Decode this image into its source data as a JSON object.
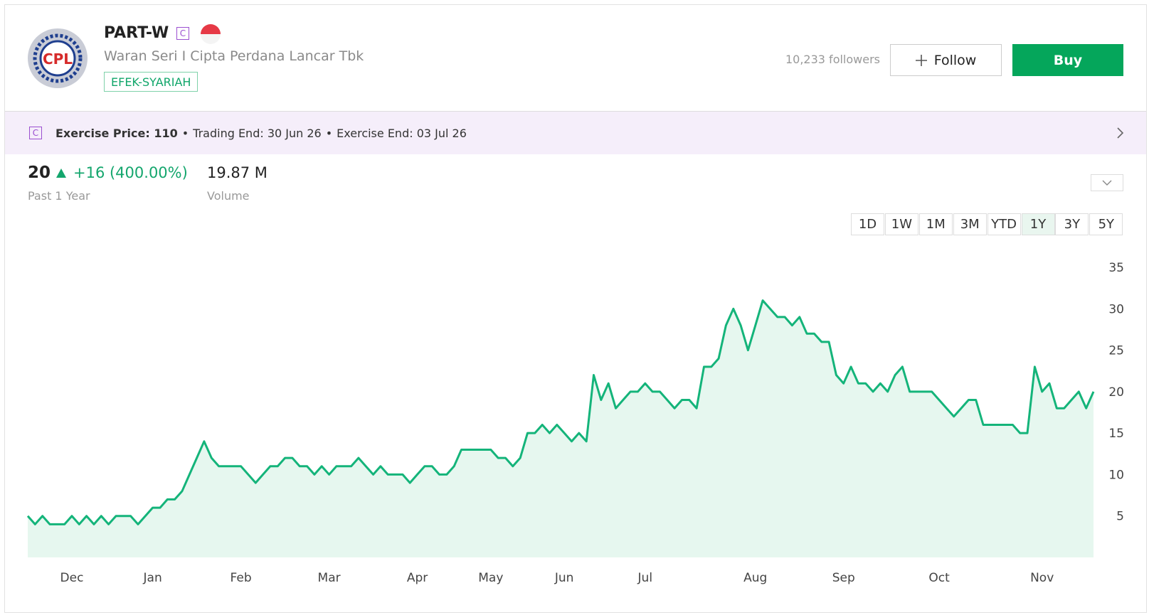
{
  "header": {
    "logo_text": "CPL",
    "ticker": "PART-W",
    "badge": "C",
    "name": "Waran Seri I Cipta Perdana Lancar Tbk",
    "tag": "EFEK-SYARIAH",
    "followers": "10,233 followers",
    "follow": "Follow",
    "buy": "Buy"
  },
  "banner": {
    "badge": "C",
    "exercise_price": "Exercise Price: 110",
    "separator": "•",
    "trading_end": "Trading End: 30 Jun 26",
    "exercise_end": "Exercise End: 03 Jul 26"
  },
  "stats": {
    "price": "20",
    "change": "+16 (400.00%)",
    "period": "Past 1 Year",
    "volume": "19.87 M",
    "volume_label": "Volume"
  },
  "ranges": {
    "labels": [
      "1D",
      "1W",
      "1M",
      "3M",
      "YTD",
      "1Y",
      "3Y",
      "5Y"
    ],
    "selected": 5
  },
  "chart_data": {
    "type": "line",
    "color": "#14b47a",
    "fill": "#e6f7ef",
    "categories": [
      null,
      null,
      null,
      null,
      null,
      null,
      "Dec",
      null,
      null,
      null,
      null,
      null,
      null,
      null,
      null,
      null,
      null,
      "Jan",
      null,
      null,
      null,
      null,
      null,
      null,
      null,
      null,
      null,
      null,
      null,
      "Feb",
      null,
      null,
      null,
      null,
      null,
      null,
      null,
      null,
      null,
      null,
      null,
      "Mar",
      null,
      null,
      null,
      null,
      null,
      null,
      null,
      null,
      null,
      null,
      null,
      "Apr",
      null,
      null,
      null,
      null,
      null,
      null,
      null,
      null,
      null,
      "May",
      null,
      null,
      null,
      null,
      null,
      null,
      null,
      null,
      null,
      "Jun",
      null,
      null,
      null,
      null,
      null,
      null,
      null,
      null,
      null,
      null,
      "Jul",
      null,
      null,
      null,
      null,
      null,
      null,
      null,
      null,
      null,
      null,
      null,
      null,
      null,
      null,
      "Aug",
      null,
      null,
      null,
      null,
      null,
      null,
      null,
      null,
      null,
      null,
      null,
      "Sep",
      null,
      null,
      null,
      null,
      null,
      null,
      null,
      null,
      null,
      null,
      null,
      null,
      "Oct",
      null,
      null,
      null,
      null,
      null,
      null,
      null,
      null,
      null,
      null,
      null,
      null,
      null,
      "Nov",
      null,
      null,
      null,
      null,
      null,
      null,
      null
    ],
    "values": [
      5,
      4,
      5,
      4,
      4,
      4,
      5,
      4,
      5,
      4,
      5,
      4,
      5,
      5,
      5,
      4,
      5,
      6,
      6,
      7,
      7,
      8,
      10,
      12,
      14,
      12,
      11,
      11,
      11,
      11,
      10,
      9,
      10,
      11,
      11,
      12,
      12,
      11,
      11,
      10,
      11,
      10,
      11,
      11,
      11,
      12,
      11,
      10,
      11,
      10,
      10,
      10,
      9,
      10,
      11,
      11,
      10,
      10,
      11,
      13,
      13,
      13,
      13,
      13,
      12,
      12,
      11,
      12,
      15,
      15,
      16,
      15,
      16,
      15,
      14,
      15,
      14,
      22,
      19,
      21,
      18,
      19,
      20,
      20,
      21,
      20,
      20,
      19,
      18,
      19,
      19,
      18,
      23,
      23,
      24,
      28,
      30,
      28,
      25,
      28,
      31,
      30,
      29,
      29,
      28,
      29,
      27,
      27,
      26,
      26,
      22,
      21,
      23,
      21,
      21,
      20,
      21,
      20,
      22,
      23,
      20,
      20,
      20,
      20,
      19,
      18,
      17,
      18,
      19,
      19,
      16,
      16,
      16,
      16,
      16,
      15,
      15,
      23,
      20,
      21,
      18,
      18,
      19,
      20,
      18,
      20
    ],
    "ylim": [
      0,
      35
    ],
    "yticks": [
      5,
      10,
      15,
      20,
      25,
      30,
      35
    ],
    "grid": false
  }
}
